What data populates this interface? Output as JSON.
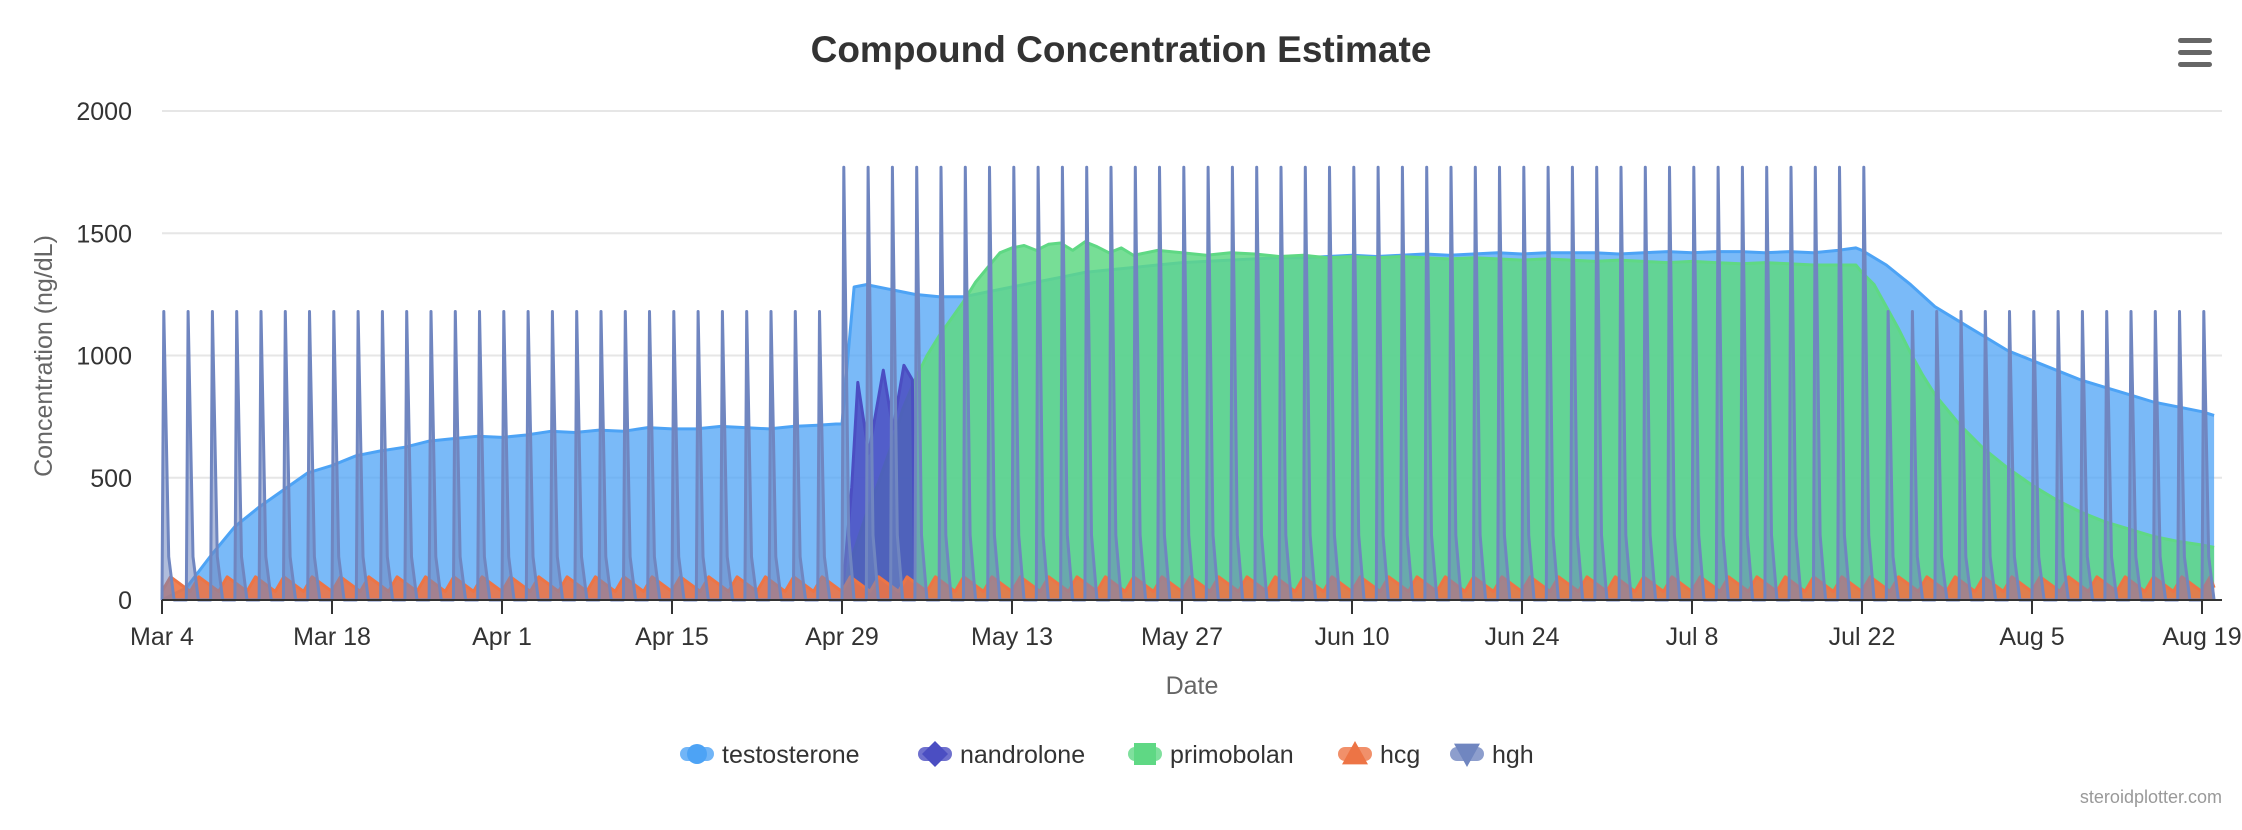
{
  "chart_data": {
    "type": "area",
    "title": "Compound Concentration Estimate",
    "xlabel": "Date",
    "ylabel": "Concentration (ng/dL)",
    "ylim": [
      0,
      2000
    ],
    "y_ticks": [
      0,
      500,
      1000,
      1500,
      2000
    ],
    "x_range_days": [
      0,
      168
    ],
    "x_ticks": [
      {
        "day": 0,
        "label": "Mar 4"
      },
      {
        "day": 14,
        "label": "Mar 18"
      },
      {
        "day": 28,
        "label": "Apr 1"
      },
      {
        "day": 42,
        "label": "Apr 15"
      },
      {
        "day": 56,
        "label": "Apr 29"
      },
      {
        "day": 70,
        "label": "May 13"
      },
      {
        "day": 84,
        "label": "May 27"
      },
      {
        "day": 98,
        "label": "Jun 10"
      },
      {
        "day": 112,
        "label": "Jun 24"
      },
      {
        "day": 126,
        "label": "Jul 8"
      },
      {
        "day": 140,
        "label": "Jul 22"
      },
      {
        "day": 154,
        "label": "Aug 5"
      },
      {
        "day": 168,
        "label": "Aug 19"
      }
    ],
    "legend_position": "bottom-center",
    "series": [
      {
        "name": "testosterone",
        "color": "#4da3f5",
        "marker": "circle",
        "points": [
          [
            0,
            0
          ],
          [
            2,
            50
          ],
          [
            4,
            180
          ],
          [
            6,
            300
          ],
          [
            8,
            380
          ],
          [
            10,
            450
          ],
          [
            12,
            520
          ],
          [
            14,
            550
          ],
          [
            16,
            590
          ],
          [
            18,
            610
          ],
          [
            20,
            625
          ],
          [
            22,
            650
          ],
          [
            24,
            660
          ],
          [
            26,
            670
          ],
          [
            28,
            665
          ],
          [
            30,
            675
          ],
          [
            32,
            690
          ],
          [
            34,
            685
          ],
          [
            36,
            695
          ],
          [
            38,
            690
          ],
          [
            40,
            705
          ],
          [
            42,
            700
          ],
          [
            44,
            700
          ],
          [
            46,
            710
          ],
          [
            48,
            705
          ],
          [
            50,
            700
          ],
          [
            52,
            710
          ],
          [
            54,
            715
          ],
          [
            55.5,
            720
          ],
          [
            56,
            720
          ],
          [
            57,
            1280
          ],
          [
            58,
            1290
          ],
          [
            60,
            1270
          ],
          [
            62,
            1250
          ],
          [
            64,
            1240
          ],
          [
            66,
            1240
          ],
          [
            68,
            1260
          ],
          [
            70,
            1280
          ],
          [
            72,
            1300
          ],
          [
            74,
            1320
          ],
          [
            76,
            1340
          ],
          [
            78,
            1350
          ],
          [
            80,
            1360
          ],
          [
            82,
            1370
          ],
          [
            84,
            1380
          ],
          [
            86,
            1385
          ],
          [
            88,
            1390
          ],
          [
            90,
            1395
          ],
          [
            92,
            1400
          ],
          [
            94,
            1400
          ],
          [
            96,
            1405
          ],
          [
            98,
            1410
          ],
          [
            100,
            1405
          ],
          [
            102,
            1410
          ],
          [
            104,
            1415
          ],
          [
            106,
            1410
          ],
          [
            108,
            1415
          ],
          [
            110,
            1420
          ],
          [
            112,
            1415
          ],
          [
            114,
            1420
          ],
          [
            116,
            1420
          ],
          [
            118,
            1420
          ],
          [
            120,
            1415
          ],
          [
            122,
            1420
          ],
          [
            124,
            1425
          ],
          [
            126,
            1420
          ],
          [
            128,
            1425
          ],
          [
            130,
            1425
          ],
          [
            132,
            1420
          ],
          [
            134,
            1425
          ],
          [
            136,
            1420
          ],
          [
            138,
            1430
          ],
          [
            139.5,
            1440
          ],
          [
            140,
            1430
          ],
          [
            142,
            1370
          ],
          [
            144,
            1290
          ],
          [
            146,
            1200
          ],
          [
            148,
            1140
          ],
          [
            150,
            1080
          ],
          [
            152,
            1020
          ],
          [
            154,
            980
          ],
          [
            156,
            940
          ],
          [
            158,
            900
          ],
          [
            160,
            870
          ],
          [
            162,
            840
          ],
          [
            164,
            810
          ],
          [
            166,
            790
          ],
          [
            168,
            770
          ],
          [
            169,
            755
          ]
        ]
      },
      {
        "name": "nandrolone",
        "color": "#4b4ec2",
        "marker": "diamond",
        "points": [
          [
            56,
            0
          ],
          [
            56.8,
            460
          ],
          [
            57.3,
            890
          ],
          [
            58.2,
            600
          ],
          [
            59.4,
            940
          ],
          [
            60.2,
            700
          ],
          [
            61.1,
            960
          ],
          [
            61.8,
            900
          ],
          [
            62,
            0
          ]
        ]
      },
      {
        "name": "primobolan",
        "color": "#5fd884",
        "marker": "square",
        "points": [
          [
            56,
            40
          ],
          [
            57,
            200
          ],
          [
            58,
            350
          ],
          [
            59,
            480
          ],
          [
            60,
            620
          ],
          [
            61,
            780
          ],
          [
            62,
            900
          ],
          [
            63,
            1000
          ],
          [
            64,
            1080
          ],
          [
            65,
            1150
          ],
          [
            66,
            1220
          ],
          [
            67,
            1300
          ],
          [
            68,
            1360
          ],
          [
            69,
            1420
          ],
          [
            70,
            1440
          ],
          [
            71,
            1450
          ],
          [
            72,
            1430
          ],
          [
            73,
            1455
          ],
          [
            74,
            1460
          ],
          [
            75,
            1430
          ],
          [
            76,
            1465
          ],
          [
            77,
            1445
          ],
          [
            78,
            1420
          ],
          [
            79,
            1440
          ],
          [
            80,
            1410
          ],
          [
            82,
            1430
          ],
          [
            84,
            1420
          ],
          [
            86,
            1410
          ],
          [
            88,
            1420
          ],
          [
            90,
            1415
          ],
          [
            92,
            1405
          ],
          [
            94,
            1410
          ],
          [
            96,
            1400
          ],
          [
            98,
            1405
          ],
          [
            100,
            1400
          ],
          [
            102,
            1405
          ],
          [
            104,
            1400
          ],
          [
            106,
            1395
          ],
          [
            108,
            1400
          ],
          [
            110,
            1395
          ],
          [
            112,
            1390
          ],
          [
            114,
            1395
          ],
          [
            116,
            1390
          ],
          [
            118,
            1385
          ],
          [
            120,
            1390
          ],
          [
            122,
            1385
          ],
          [
            124,
            1380
          ],
          [
            126,
            1385
          ],
          [
            128,
            1380
          ],
          [
            130,
            1375
          ],
          [
            132,
            1380
          ],
          [
            134,
            1375
          ],
          [
            136,
            1370
          ],
          [
            138,
            1370
          ],
          [
            139.5,
            1370
          ],
          [
            140,
            1340
          ],
          [
            141,
            1290
          ],
          [
            142,
            1200
          ],
          [
            143,
            1110
          ],
          [
            144,
            1010
          ],
          [
            145,
            920
          ],
          [
            146,
            840
          ],
          [
            148,
            720
          ],
          [
            150,
            620
          ],
          [
            152,
            540
          ],
          [
            154,
            470
          ],
          [
            156,
            410
          ],
          [
            158,
            360
          ],
          [
            160,
            320
          ],
          [
            162,
            290
          ],
          [
            164,
            260
          ],
          [
            166,
            240
          ],
          [
            168,
            225
          ],
          [
            169,
            215
          ]
        ]
      },
      {
        "name": "hcg",
        "color": "#ed7445",
        "marker": "triangle",
        "peak": 95,
        "trough": 35,
        "start_day": 0,
        "end_day": 169,
        "period_days": 2.333
      },
      {
        "name": "hgh",
        "color": "#7086c0",
        "marker": "triangle-down",
        "injection_days_phase1": [
          0,
          2,
          4,
          6,
          8,
          10,
          12,
          14,
          16,
          18,
          20,
          22,
          24,
          26,
          28,
          30,
          32,
          34,
          36,
          38,
          40,
          42,
          44,
          46,
          48,
          50,
          52,
          54
        ],
        "peak_phase1": 1180,
        "phase2_start_day": 56,
        "phase2_end_day": 140,
        "phase2_interval_days": 2,
        "peak_phase2": 1770,
        "injection_days_phase3": [
          142,
          144,
          146,
          148,
          150,
          152,
          154,
          156,
          158,
          160,
          162,
          164,
          166,
          168
        ],
        "peak_phase3": 1180
      }
    ]
  },
  "menu": {
    "icon": "hamburger-menu-icon"
  },
  "credits": "steroidplotter.com"
}
